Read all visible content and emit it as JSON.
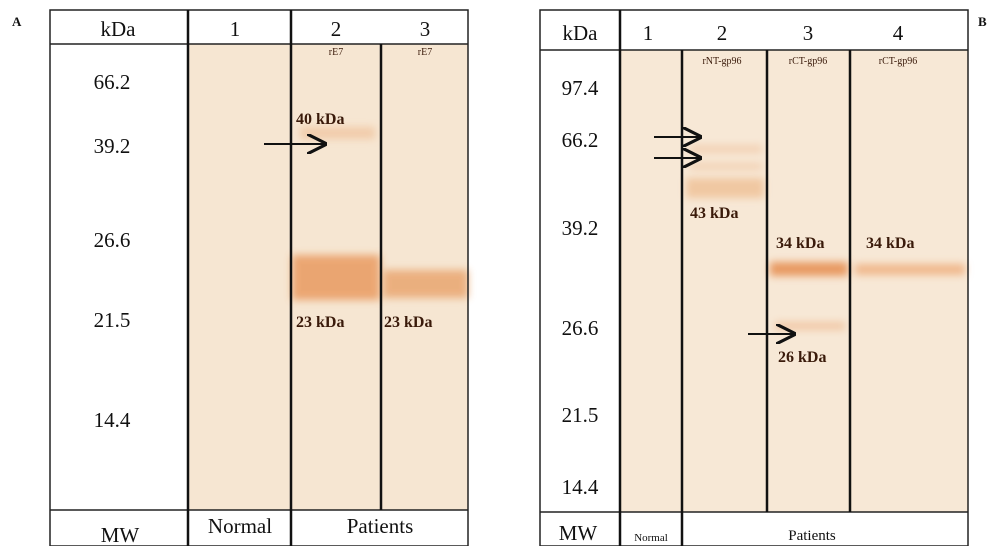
{
  "panels": [
    {
      "label": "A",
      "header": [
        "kDa",
        "1",
        "2",
        "3"
      ],
      "lane_sublabels": [
        "rE7",
        "rE7"
      ],
      "mw": [
        "66.2",
        "39.2",
        "26.6",
        "21.5",
        "14.4"
      ],
      "band_labels": [
        "40 kDa",
        "23 kDa",
        "23 kDa"
      ],
      "footer": [
        "MW",
        "Normal",
        "Patients"
      ]
    },
    {
      "label": "B",
      "header": [
        "kDa",
        "1",
        "2",
        "3",
        "4"
      ],
      "lane_sublabels": [
        "rNT-gp96",
        "rCT-gp96",
        "rCT-gp96"
      ],
      "mw": [
        "97.4",
        "66.2",
        "39.2",
        "26.6",
        "21.5",
        "14.4"
      ],
      "band_labels": [
        "43 kDa",
        "34 kDa",
        "34 kDa",
        "26 kDa"
      ],
      "footer": [
        "MW",
        "Normal",
        "Patients"
      ]
    }
  ]
}
